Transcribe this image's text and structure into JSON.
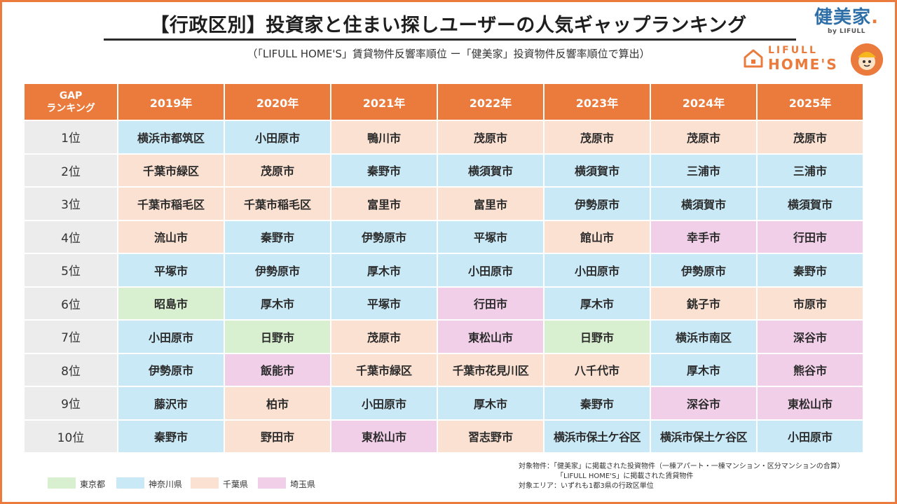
{
  "header": {
    "title": "【行政区別】投資家と住まい探しユーザーの人気ギャップランキング",
    "subtitle": "（「LIFULL HOME'S」賃貸物件反響率順位 ー「健美家」投資物件反響率順位で算出）"
  },
  "logos": {
    "kenbiya": "健美家",
    "kenbiya_by": "by LIFULL",
    "homes_top": "LIFULL",
    "homes_bottom": "HOME'S"
  },
  "table": {
    "rank_header": "GAP\nランキング",
    "years": [
      "2019年",
      "2020年",
      "2021年",
      "2022年",
      "2023年",
      "2024年",
      "2025年"
    ],
    "rows": [
      {
        "rank": "1位",
        "cells": [
          [
            "横浜市都筑区",
            "kanagawa"
          ],
          [
            "小田原市",
            "kanagawa"
          ],
          [
            "鴨川市",
            "chiba"
          ],
          [
            "茂原市",
            "chiba"
          ],
          [
            "茂原市",
            "chiba"
          ],
          [
            "茂原市",
            "chiba"
          ],
          [
            "茂原市",
            "chiba"
          ]
        ]
      },
      {
        "rank": "2位",
        "cells": [
          [
            "千葉市緑区",
            "chiba"
          ],
          [
            "茂原市",
            "chiba"
          ],
          [
            "秦野市",
            "kanagawa"
          ],
          [
            "横須賀市",
            "kanagawa"
          ],
          [
            "横須賀市",
            "kanagawa"
          ],
          [
            "三浦市",
            "kanagawa"
          ],
          [
            "三浦市",
            "kanagawa"
          ]
        ]
      },
      {
        "rank": "3位",
        "cells": [
          [
            "千葉市稲毛区",
            "chiba"
          ],
          [
            "千葉市稲毛区",
            "chiba"
          ],
          [
            "富里市",
            "chiba"
          ],
          [
            "富里市",
            "chiba"
          ],
          [
            "伊勢原市",
            "kanagawa"
          ],
          [
            "横須賀市",
            "kanagawa"
          ],
          [
            "横須賀市",
            "kanagawa"
          ]
        ]
      },
      {
        "rank": "4位",
        "cells": [
          [
            "流山市",
            "chiba"
          ],
          [
            "秦野市",
            "kanagawa"
          ],
          [
            "伊勢原市",
            "kanagawa"
          ],
          [
            "平塚市",
            "kanagawa"
          ],
          [
            "館山市",
            "chiba"
          ],
          [
            "幸手市",
            "saitama"
          ],
          [
            "行田市",
            "saitama"
          ]
        ]
      },
      {
        "rank": "5位",
        "cells": [
          [
            "平塚市",
            "kanagawa"
          ],
          [
            "伊勢原市",
            "kanagawa"
          ],
          [
            "厚木市",
            "kanagawa"
          ],
          [
            "小田原市",
            "kanagawa"
          ],
          [
            "小田原市",
            "kanagawa"
          ],
          [
            "伊勢原市",
            "kanagawa"
          ],
          [
            "秦野市",
            "kanagawa"
          ]
        ]
      },
      {
        "rank": "6位",
        "cells": [
          [
            "昭島市",
            "tokyo"
          ],
          [
            "厚木市",
            "kanagawa"
          ],
          [
            "平塚市",
            "kanagawa"
          ],
          [
            "行田市",
            "saitama"
          ],
          [
            "厚木市",
            "kanagawa"
          ],
          [
            "銚子市",
            "chiba"
          ],
          [
            "市原市",
            "chiba"
          ]
        ]
      },
      {
        "rank": "7位",
        "cells": [
          [
            "小田原市",
            "kanagawa"
          ],
          [
            "日野市",
            "tokyo"
          ],
          [
            "茂原市",
            "chiba"
          ],
          [
            "東松山市",
            "saitama"
          ],
          [
            "日野市",
            "tokyo"
          ],
          [
            "横浜市南区",
            "kanagawa"
          ],
          [
            "深谷市",
            "saitama"
          ]
        ]
      },
      {
        "rank": "8位",
        "cells": [
          [
            "伊勢原市",
            "kanagawa"
          ],
          [
            "飯能市",
            "saitama"
          ],
          [
            "千葉市緑区",
            "chiba"
          ],
          [
            "千葉市花見川区",
            "chiba"
          ],
          [
            "八千代市",
            "chiba"
          ],
          [
            "厚木市",
            "kanagawa"
          ],
          [
            "熊谷市",
            "saitama"
          ]
        ]
      },
      {
        "rank": "9位",
        "cells": [
          [
            "藤沢市",
            "kanagawa"
          ],
          [
            "柏市",
            "chiba"
          ],
          [
            "小田原市",
            "kanagawa"
          ],
          [
            "厚木市",
            "kanagawa"
          ],
          [
            "秦野市",
            "kanagawa"
          ],
          [
            "深谷市",
            "saitama"
          ],
          [
            "東松山市",
            "saitama"
          ]
        ]
      },
      {
        "rank": "10位",
        "cells": [
          [
            "秦野市",
            "kanagawa"
          ],
          [
            "野田市",
            "chiba"
          ],
          [
            "東松山市",
            "saitama"
          ],
          [
            "習志野市",
            "chiba"
          ],
          [
            "横浜市保土ケ谷区",
            "kanagawa"
          ],
          [
            "横浜市保土ケ谷区",
            "kanagawa"
          ],
          [
            "小田原市",
            "kanagawa"
          ]
        ]
      }
    ]
  },
  "colors": {
    "tokyo": "#d9f0d0",
    "kanagawa": "#c9e9f7",
    "chiba": "#fbe1d2",
    "saitama": "#f1cfe9",
    "accent": "#ea7b3c"
  },
  "legend": [
    {
      "key": "tokyo",
      "label": "東京都"
    },
    {
      "key": "kanagawa",
      "label": "神奈川県"
    },
    {
      "key": "chiba",
      "label": "千葉県"
    },
    {
      "key": "saitama",
      "label": "埼玉県"
    }
  ],
  "notes": {
    "line1": "対象物件：「健美家」に掲載された投資物件（一棟アパート・一棟マンション・区分マンションの合算）",
    "line2": "「LIFULL HOME'S」に掲載された賃貸物件",
    "line3": "対象エリア：いずれも1都3県の行政区単位"
  }
}
